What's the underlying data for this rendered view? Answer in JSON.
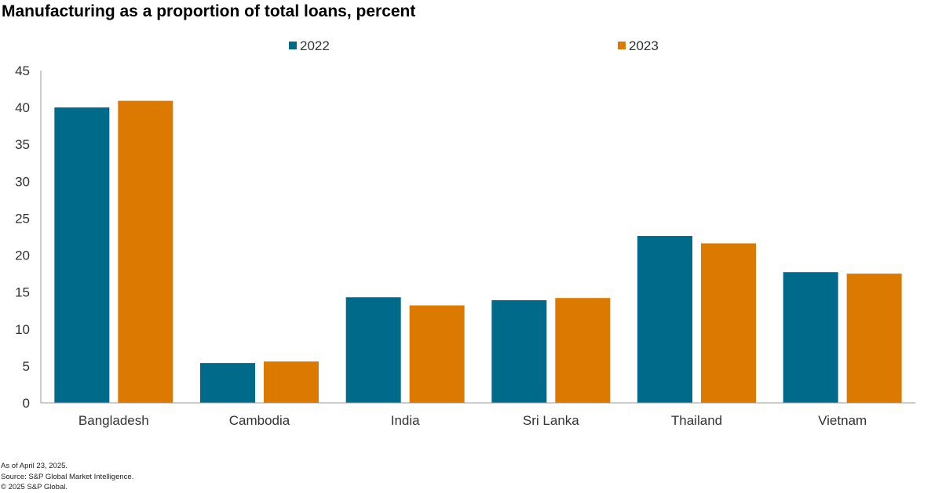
{
  "chart_data": {
    "type": "bar",
    "title": "Manufacturing  as a proportion of total loans, percent",
    "categories": [
      "Bangladesh",
      "Cambodia",
      "India",
      "Sri Lanka",
      "Thailand",
      "Vietnam"
    ],
    "series": [
      {
        "name": "2022",
        "color": "#006a8a",
        "values": [
          40.0,
          5.4,
          14.3,
          13.9,
          22.6,
          17.7
        ]
      },
      {
        "name": "2023",
        "color": "#dc7900",
        "values": [
          40.9,
          5.6,
          13.2,
          14.2,
          21.6,
          17.5
        ]
      }
    ],
    "ylim": [
      0,
      45
    ],
    "yticks": [
      "0",
      "5",
      "10",
      "15",
      "20",
      "25",
      "30",
      "35",
      "40",
      "45"
    ],
    "xlabel": "",
    "ylabel": "",
    "grid": false,
    "legend_position": "top-center"
  },
  "footer": {
    "as_of": "As of April 23, 2025.",
    "source": "Source: S&P Global Market Intelligence.",
    "copyright": "© 2025 S&P Global."
  }
}
